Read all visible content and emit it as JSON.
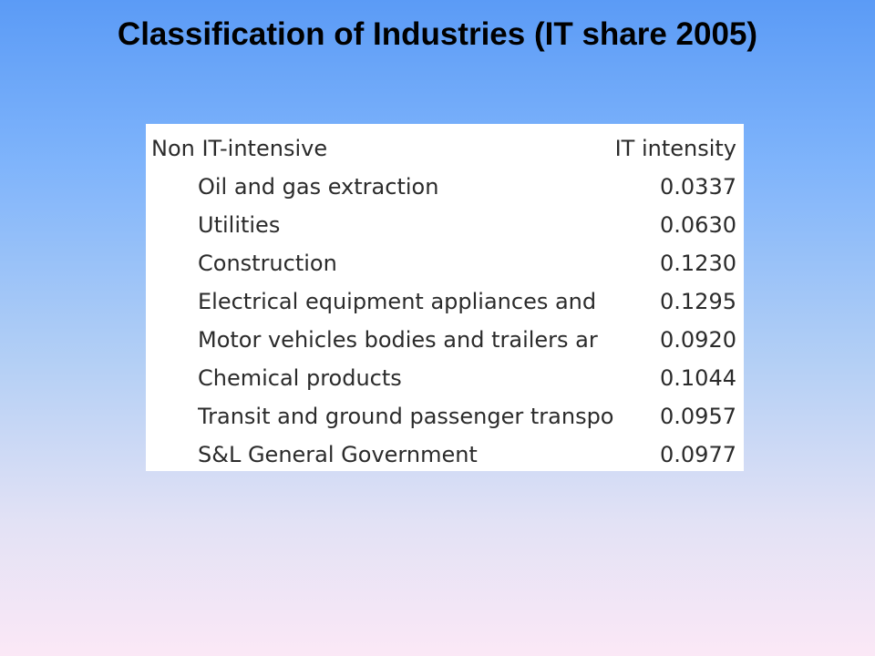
{
  "slide": {
    "title": "Classification of Industries (IT share 2005)"
  },
  "table": {
    "header": {
      "group_label": "Non IT-intensive",
      "value_label": "IT intensity"
    },
    "rows": [
      {
        "industry": "Oil and gas extraction",
        "value": "0.0337"
      },
      {
        "industry": "Utilities",
        "value": "0.0630"
      },
      {
        "industry": "Construction",
        "value": "0.1230"
      },
      {
        "industry": "Electrical equipment appliances and",
        "value": "0.1295"
      },
      {
        "industry": "Motor vehicles bodies and trailers ar",
        "value": "0.0920"
      },
      {
        "industry": "Chemical products",
        "value": "0.1044"
      },
      {
        "industry": "Transit and ground passenger transpo",
        "value": "0.0957"
      },
      {
        "industry": "S&L General Government",
        "value": "0.0977"
      }
    ]
  }
}
